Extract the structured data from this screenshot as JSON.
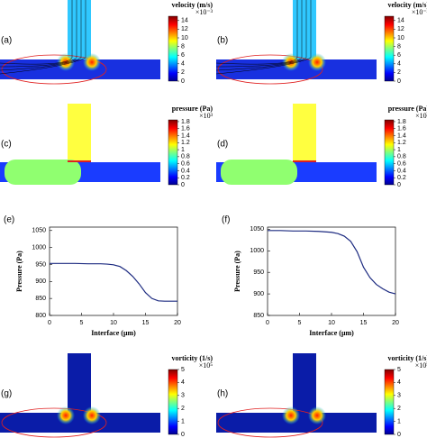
{
  "panels": [
    {
      "label": "(a)",
      "kind": "velocity",
      "colorbar": {
        "title": "velocity (m/s)",
        "exponent": "×10⁻³",
        "lim": [
          0,
          15
        ],
        "ticks": [
          0,
          2,
          4,
          6,
          8,
          10,
          12,
          14
        ]
      }
    },
    {
      "label": "(b)",
      "kind": "velocity",
      "colorbar": {
        "title": "velocity (m/s)",
        "exponent": "×10⁻³",
        "lim": [
          0,
          15
        ],
        "ticks": [
          0,
          2,
          4,
          6,
          8,
          10,
          12,
          14
        ]
      }
    },
    {
      "label": "(c)",
      "kind": "pressure",
      "colorbar": {
        "title": "pressure (Pa)",
        "exponent": "×10³",
        "lim": [
          0,
          1.85
        ],
        "ticks": [
          0,
          0.2,
          0.4,
          0.6,
          0.8,
          1,
          1.2,
          1.4,
          1.6,
          1.8
        ]
      }
    },
    {
      "label": "(d)",
      "kind": "pressure",
      "colorbar": {
        "title": "pressure (Pa)",
        "exponent": "×10³",
        "lim": [
          0,
          1.85
        ],
        "ticks": [
          0,
          0.2,
          0.4,
          0.6,
          0.8,
          1,
          1.2,
          1.4,
          1.6,
          1.8
        ]
      }
    },
    {
      "label": "(g)",
      "kind": "vorticity",
      "colorbar": {
        "title": "vorticity (1/s)",
        "exponent": "×10⁵",
        "lim": [
          0,
          5
        ],
        "ticks": [
          0,
          1,
          2,
          3,
          4,
          5
        ]
      }
    },
    {
      "label": "(h)",
      "kind": "vorticity",
      "colorbar": {
        "title": "vorticity (1/s)",
        "exponent": "×10⁵",
        "lim": [
          0,
          5
        ],
        "ticks": [
          0,
          1,
          2,
          3,
          4,
          5
        ]
      }
    }
  ],
  "chart_data": [
    {
      "type": "line",
      "label": "(e)",
      "xlabel": "Interface (μm)",
      "ylabel": "Pressure (Pa)",
      "x": [
        0,
        2,
        4,
        6,
        8,
        9,
        10,
        11,
        12,
        13,
        14,
        15,
        16,
        17,
        18,
        19,
        20
      ],
      "series": [
        {
          "color": "#1c2a80",
          "values": [
            953,
            953,
            953,
            952,
            952,
            951,
            949,
            944,
            932,
            915,
            893,
            867,
            850,
            843,
            842,
            842,
            842
          ]
        }
      ],
      "xlim": [
        0,
        20
      ],
      "xticks": [
        0,
        5,
        10,
        15,
        20
      ],
      "ylim": [
        800,
        1060
      ],
      "yticks": [
        800,
        850,
        900,
        950,
        1000,
        1050
      ]
    },
    {
      "type": "line",
      "label": "(f)",
      "xlabel": "Interface (μm)",
      "ylabel": "Pressure (Pa)",
      "x": [
        0,
        2,
        4,
        6,
        8,
        10,
        11,
        12,
        13,
        14,
        15,
        16,
        17,
        18,
        19,
        20
      ],
      "series": [
        {
          "color": "#1c2a80",
          "values": [
            1047,
            1047,
            1046,
            1046,
            1045,
            1043,
            1040,
            1034,
            1022,
            998,
            962,
            938,
            922,
            912,
            904,
            900
          ]
        }
      ],
      "xlim": [
        0,
        20
      ],
      "xticks": [
        0,
        5,
        10,
        15,
        20
      ],
      "ylim": [
        850,
        1055
      ],
      "yticks": [
        850,
        900,
        950,
        1000,
        1050
      ]
    }
  ]
}
